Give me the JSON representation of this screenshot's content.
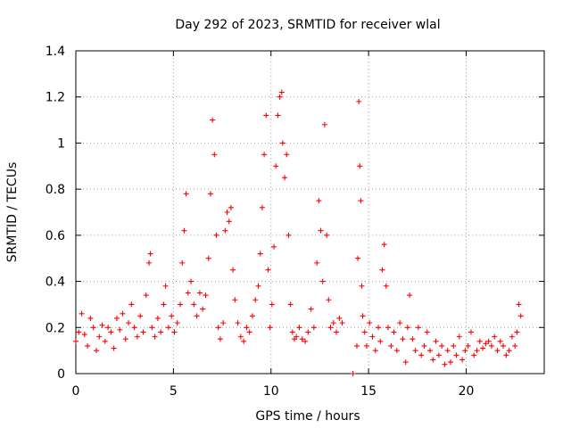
{
  "chart_data": {
    "type": "scatter",
    "title": "Day 292 of 2023, SRMTID for receiver wlal",
    "xlabel": "GPS time / hours",
    "ylabel": "SRMTID / TECUs",
    "xlim": [
      0,
      24
    ],
    "ylim": [
      0,
      1.4
    ],
    "xticks": [
      0,
      5,
      10,
      15,
      20
    ],
    "xtick_labels": [
      "0",
      "5",
      "10",
      "15",
      "20"
    ],
    "yticks": [
      0,
      0.2,
      0.4,
      0.6,
      0.8,
      1.0,
      1.2,
      1.4
    ],
    "ytick_labels": [
      "0",
      "0.2",
      "0.4",
      "0.6",
      "0.8",
      "1",
      "1.2",
      "1.4"
    ],
    "grid": true,
    "marker": "+",
    "color": "#ff0000",
    "series": [
      {
        "name": "SRMTID",
        "x": [
          0.0,
          0.15,
          0.3,
          0.45,
          0.6,
          0.75,
          0.9,
          1.05,
          1.2,
          1.35,
          1.5,
          1.65,
          1.8,
          1.95,
          2.1,
          2.25,
          2.4,
          2.55,
          2.7,
          2.85,
          3.0,
          3.15,
          3.3,
          3.45,
          3.6,
          3.75,
          3.82,
          3.9,
          4.05,
          4.2,
          4.35,
          4.5,
          4.6,
          4.75,
          4.9,
          5.05,
          5.2,
          5.35,
          5.45,
          5.55,
          5.65,
          5.75,
          5.9,
          6.05,
          6.2,
          6.35,
          6.5,
          6.65,
          6.8,
          6.9,
          7.0,
          7.1,
          7.2,
          7.3,
          7.4,
          7.55,
          7.65,
          7.75,
          7.85,
          7.95,
          8.05,
          8.15,
          8.3,
          8.45,
          8.6,
          8.75,
          8.9,
          9.05,
          9.2,
          9.35,
          9.45,
          9.55,
          9.65,
          9.75,
          9.85,
          9.95,
          10.05,
          10.15,
          10.25,
          10.35,
          10.45,
          10.55,
          10.6,
          10.7,
          10.8,
          10.9,
          11.0,
          11.1,
          11.2,
          11.3,
          11.45,
          11.6,
          11.75,
          11.9,
          12.05,
          12.2,
          12.35,
          12.45,
          12.55,
          12.65,
          12.75,
          12.85,
          12.95,
          13.05,
          13.2,
          13.35,
          13.5,
          13.65,
          14.2,
          14.4,
          14.45,
          14.5,
          14.55,
          14.6,
          14.65,
          14.7,
          14.8,
          14.9,
          15.05,
          15.2,
          15.35,
          15.5,
          15.6,
          15.7,
          15.8,
          15.9,
          16.0,
          16.15,
          16.3,
          16.45,
          16.6,
          16.75,
          16.9,
          17.0,
          17.1,
          17.25,
          17.4,
          17.55,
          17.7,
          17.85,
          18.0,
          18.15,
          18.3,
          18.45,
          18.6,
          18.75,
          18.9,
          19.05,
          19.2,
          19.35,
          19.5,
          19.65,
          19.8,
          19.95,
          20.1,
          20.25,
          20.4,
          20.55,
          20.7,
          20.85,
          21.0,
          21.15,
          21.3,
          21.45,
          21.6,
          21.75,
          21.9,
          22.05,
          22.2,
          22.35,
          22.5,
          22.6,
          22.7,
          22.8
        ],
        "y": [
          0.14,
          0.18,
          0.26,
          0.17,
          0.12,
          0.24,
          0.2,
          0.1,
          0.16,
          0.21,
          0.14,
          0.2,
          0.18,
          0.11,
          0.24,
          0.19,
          0.26,
          0.15,
          0.22,
          0.3,
          0.2,
          0.16,
          0.25,
          0.18,
          0.34,
          0.48,
          0.52,
          0.2,
          0.16,
          0.24,
          0.18,
          0.3,
          0.38,
          0.2,
          0.25,
          0.18,
          0.22,
          0.3,
          0.48,
          0.62,
          0.78,
          0.35,
          0.4,
          0.3,
          0.25,
          0.35,
          0.28,
          0.34,
          0.5,
          0.78,
          1.1,
          0.95,
          0.6,
          0.2,
          0.15,
          0.22,
          0.62,
          0.7,
          0.66,
          0.72,
          0.45,
          0.32,
          0.22,
          0.16,
          0.14,
          0.2,
          0.18,
          0.25,
          0.32,
          0.38,
          0.52,
          0.72,
          0.95,
          1.12,
          0.45,
          0.2,
          0.3,
          0.55,
          0.9,
          1.12,
          1.2,
          1.22,
          1.0,
          0.85,
          0.95,
          0.6,
          0.3,
          0.18,
          0.15,
          0.16,
          0.2,
          0.15,
          0.14,
          0.18,
          0.28,
          0.2,
          0.48,
          0.75,
          0.62,
          0.4,
          1.08,
          0.6,
          0.32,
          0.2,
          0.22,
          0.18,
          0.24,
          0.22,
          0.0,
          0.12,
          0.5,
          1.18,
          0.9,
          0.75,
          0.38,
          0.25,
          0.18,
          0.12,
          0.22,
          0.16,
          0.1,
          0.2,
          0.14,
          0.45,
          0.56,
          0.38,
          0.2,
          0.12,
          0.18,
          0.1,
          0.22,
          0.15,
          0.05,
          0.2,
          0.34,
          0.15,
          0.1,
          0.2,
          0.08,
          0.12,
          0.18,
          0.1,
          0.06,
          0.14,
          0.08,
          0.12,
          0.04,
          0.1,
          0.05,
          0.12,
          0.08,
          0.16,
          0.06,
          0.1,
          0.12,
          0.18,
          0.08,
          0.1,
          0.14,
          0.11,
          0.13,
          0.14,
          0.12,
          0.16,
          0.1,
          0.14,
          0.12,
          0.08,
          0.1,
          0.16,
          0.12,
          0.18,
          0.3,
          0.25
        ]
      }
    ]
  }
}
